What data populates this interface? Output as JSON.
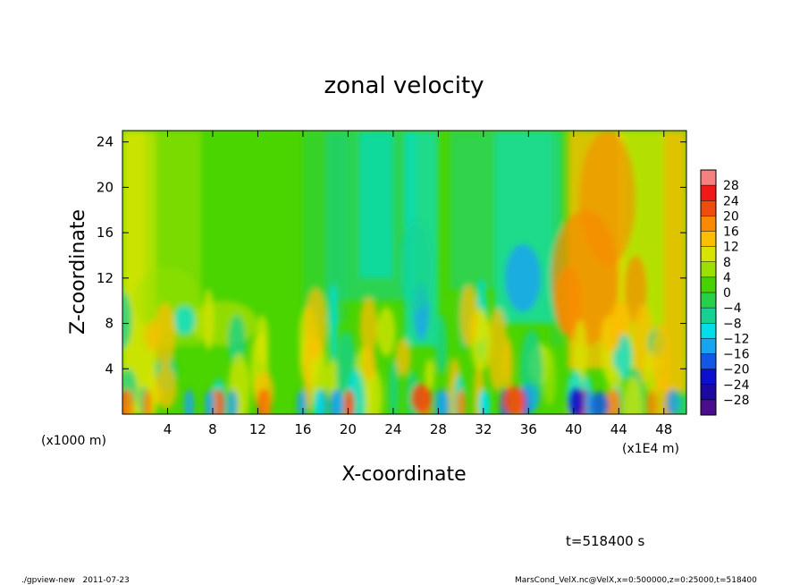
{
  "chart_data": {
    "type": "heatmap",
    "title": "zonal velocity",
    "xlabel": "X-coordinate",
    "ylabel": "Z-coordinate",
    "x_units_left": "(x1000 m)",
    "x_units_right": "(x1E4 m)",
    "xlim": [
      0,
      50
    ],
    "ylim": [
      0,
      25
    ],
    "xticks": [
      4,
      8,
      12,
      16,
      20,
      24,
      28,
      32,
      36,
      40,
      44,
      48
    ],
    "yticks": [
      4,
      8,
      12,
      16,
      20,
      24
    ],
    "colorbar": {
      "levels": [
        28,
        24,
        20,
        16,
        12,
        8,
        4,
        0,
        -4,
        -8,
        -12,
        -16,
        -20,
        -24,
        -28
      ],
      "colors": [
        "#f48080",
        "#f21818",
        "#f04c10",
        "#f88a00",
        "#f9bf00",
        "#d8e400",
        "#9ae000",
        "#48d100",
        "#28cf48",
        "#16d292",
        "#00dfe8",
        "#19a4ef",
        "#1357e6",
        "#0c0ed0",
        "#1c0aa0",
        "#4a0d8c"
      ]
    },
    "time_label": "t=518400 s"
  },
  "footer": {
    "left": "./gpview-new   2011-07-23",
    "right": "MarsCond_VelX.nc@VelX,x=0:500000,z=0:25000,t=518400"
  }
}
